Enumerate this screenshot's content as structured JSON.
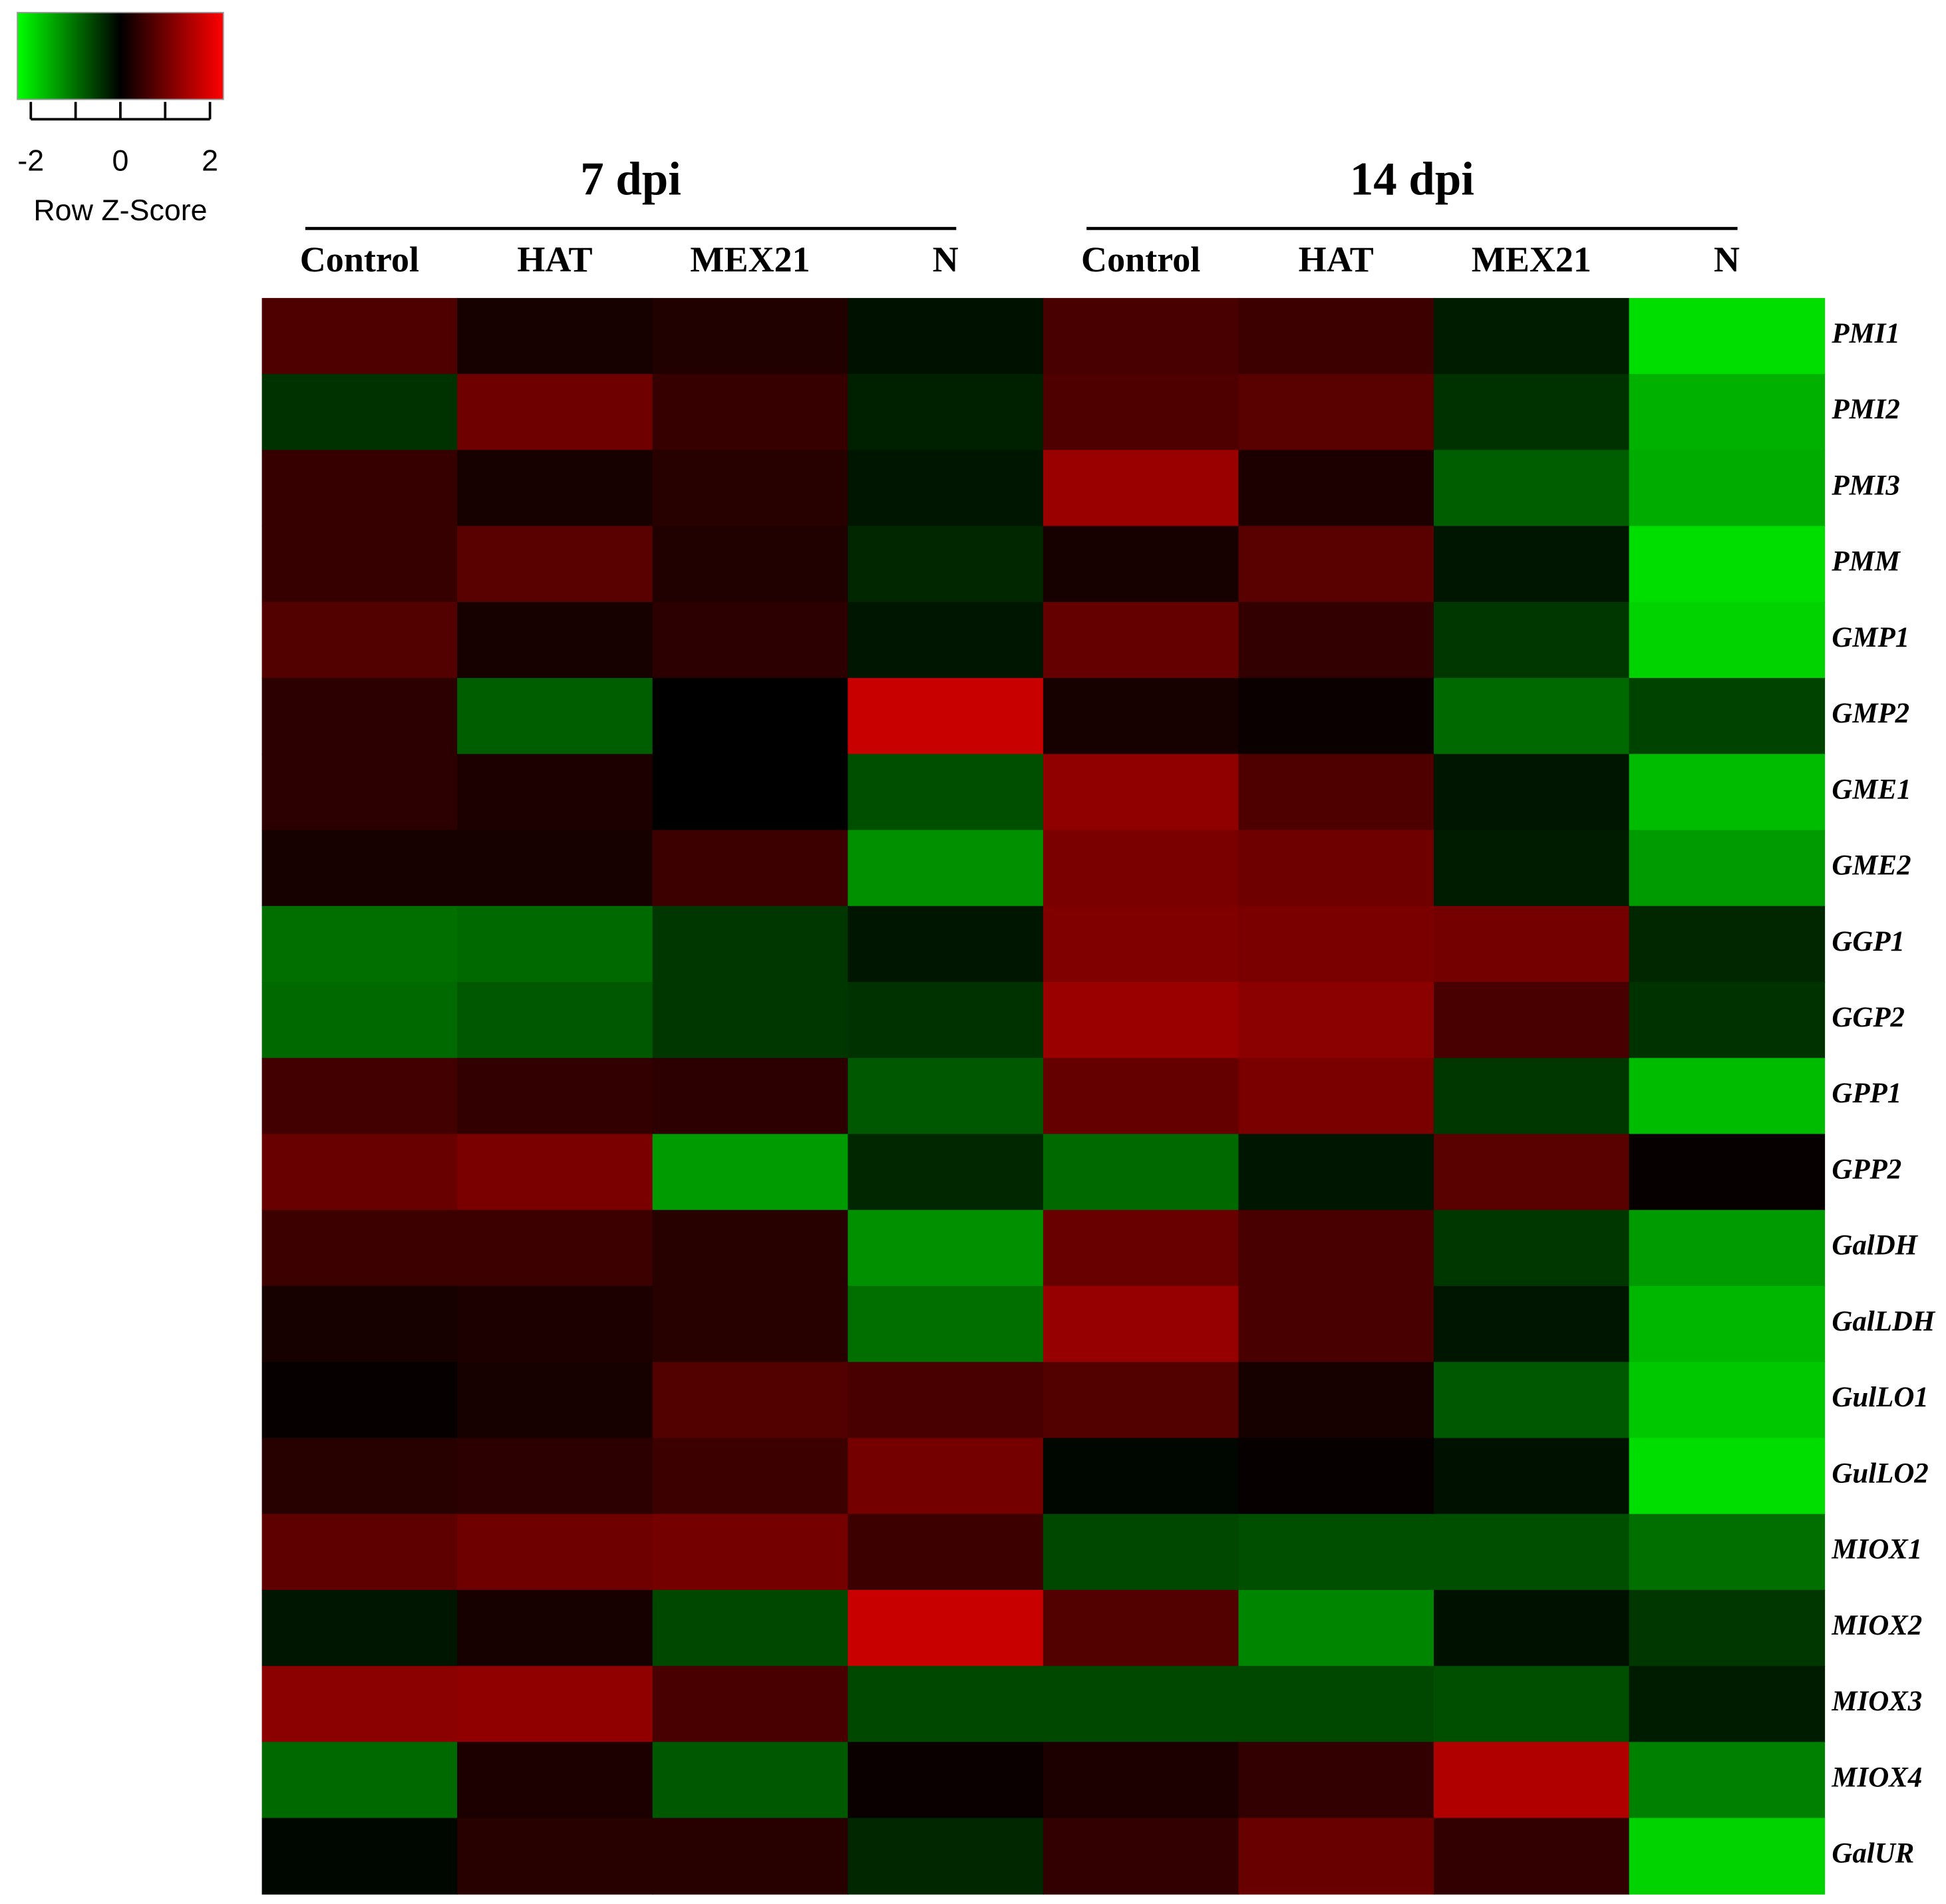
{
  "chart_data": {
    "type": "heatmap",
    "groups": [
      {
        "name": "7 dpi",
        "columns": [
          "Control",
          "HAT",
          "MEX21",
          "N"
        ]
      },
      {
        "name": "14 dpi",
        "columns": [
          "Control",
          "HAT",
          "MEX21",
          "N"
        ]
      }
    ],
    "rows": [
      "PMI1",
      "PMI2",
      "PMI3",
      "PMM",
      "GMP1",
      "GMP2",
      "GME1",
      "GME2",
      "GGP1",
      "GGP2",
      "GPP1",
      "GPP2",
      "GalDH",
      "GalLDH",
      "GulLO1",
      "GulLO2",
      "MIOX1",
      "MIOX2",
      "MIOX3",
      "MIOX4",
      "GalUR"
    ],
    "values": [
      [
        0.7,
        0.2,
        0.3,
        -0.15,
        0.65,
        0.55,
        -0.25,
        -2.0
      ],
      [
        -0.45,
        1.0,
        0.5,
        -0.3,
        0.7,
        0.8,
        -0.45,
        -1.6
      ],
      [
        0.5,
        0.2,
        0.35,
        -0.2,
        1.4,
        0.25,
        -0.85,
        -1.55
      ],
      [
        0.5,
        0.8,
        0.3,
        -0.35,
        0.2,
        0.8,
        -0.2,
        -2.0
      ],
      [
        0.75,
        0.2,
        0.4,
        -0.2,
        0.9,
        0.45,
        -0.5,
        -1.9
      ],
      [
        0.4,
        -0.85,
        0.0,
        1.8,
        0.2,
        0.1,
        -0.95,
        -0.6
      ],
      [
        0.4,
        0.25,
        0.0,
        -0.7,
        1.3,
        0.7,
        -0.2,
        -1.7
      ],
      [
        0.2,
        0.2,
        0.55,
        -1.3,
        1.1,
        1.0,
        -0.25,
        -1.4
      ],
      [
        -1.0,
        -0.95,
        -0.5,
        -0.2,
        1.15,
        1.1,
        1.05,
        -0.35
      ],
      [
        -0.95,
        -0.8,
        -0.5,
        -0.45,
        1.4,
        1.25,
        0.65,
        -0.45
      ],
      [
        0.6,
        0.45,
        0.4,
        -0.8,
        0.9,
        1.1,
        -0.5,
        -1.7
      ],
      [
        0.95,
        1.1,
        -1.4,
        -0.35,
        -0.95,
        -0.2,
        0.8,
        0.05
      ],
      [
        0.55,
        0.55,
        0.35,
        -1.3,
        0.95,
        0.65,
        -0.5,
        -1.4
      ],
      [
        0.2,
        0.25,
        0.35,
        -1.0,
        1.35,
        0.65,
        -0.2,
        -1.65
      ],
      [
        0.05,
        0.2,
        0.75,
        0.65,
        0.75,
        0.2,
        -0.8,
        -1.8
      ],
      [
        0.35,
        0.4,
        0.55,
        1.05,
        -0.05,
        0.05,
        -0.15,
        -2.0
      ],
      [
        0.85,
        1.0,
        1.05,
        0.55,
        -0.65,
        -0.7,
        -0.7,
        -1.0
      ],
      [
        -0.2,
        0.2,
        -0.65,
        1.8,
        0.75,
        -1.2,
        -0.15,
        -0.5
      ],
      [
        1.25,
        1.3,
        0.65,
        -0.65,
        -0.65,
        -0.65,
        -0.7,
        -0.25
      ],
      [
        -0.95,
        0.25,
        -0.8,
        0.1,
        0.25,
        0.45,
        1.6,
        -1.15
      ],
      [
        -0.05,
        0.35,
        0.35,
        -0.35,
        0.45,
        0.95,
        0.45,
        -1.9
      ]
    ],
    "colors": [
      "#00ff00",
      "#000000",
      "#ff0000"
    ],
    "zlim": [
      -2.3,
      2.3
    ],
    "colorbar_ticks": [
      -2,
      {
        "value": -1,
        "label": null
      },
      0,
      {
        "value": 1,
        "label": null
      },
      2
    ],
    "colorbar_label": "Row Z-Score"
  }
}
